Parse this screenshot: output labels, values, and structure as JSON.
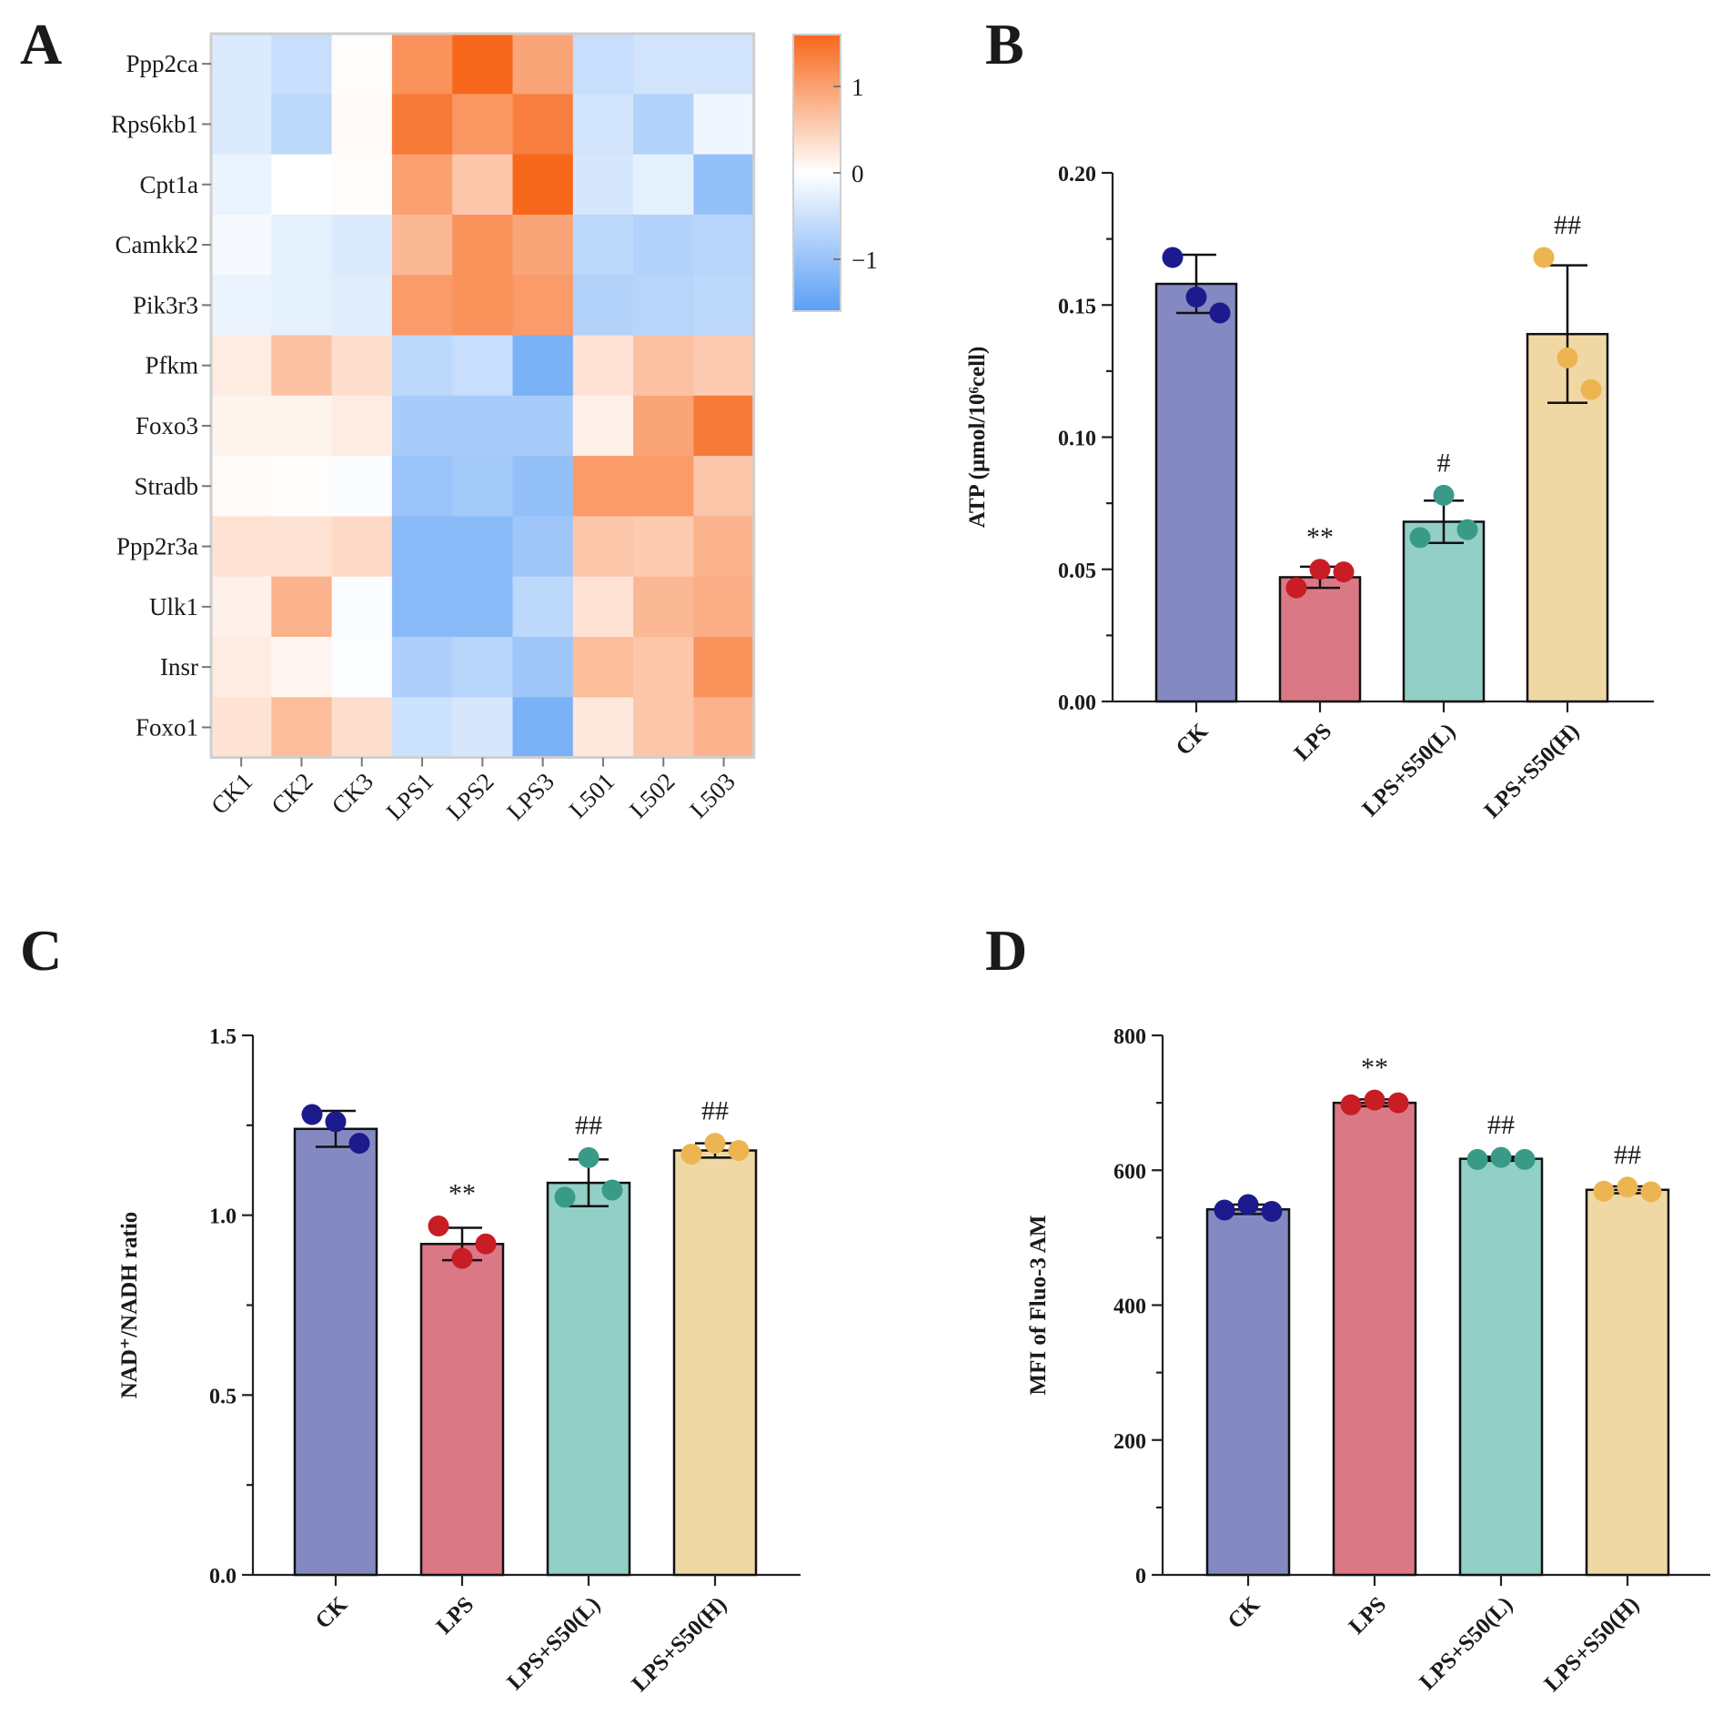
{
  "panels": {
    "A": {
      "letter": "A"
    },
    "B": {
      "letter": "B"
    },
    "C": {
      "letter": "C"
    },
    "D": {
      "letter": "D"
    }
  },
  "chart_data": [
    {
      "panel": "A",
      "type": "heatmap",
      "rows": [
        "Ppp2ca",
        "Rps6kb1",
        "Cpt1a",
        "Camkk2",
        "Pik3r3",
        "Pfkm",
        "Foxo3",
        "Stradb",
        "Ppp2r3a",
        "Ulk1",
        "Insr",
        "Foxo1"
      ],
      "columns": [
        "CK1",
        "CK2",
        "CK3",
        "LPS1",
        "LPS2",
        "LPS3",
        "L501",
        "L502",
        "L503"
      ],
      "values": [
        [
          -0.35,
          -0.55,
          0.02,
          1.15,
          1.6,
          0.95,
          -0.55,
          -0.45,
          -0.45
        ],
        [
          -0.35,
          -0.65,
          0.05,
          1.4,
          1.1,
          1.35,
          -0.45,
          -0.75,
          -0.15
        ],
        [
          -0.2,
          0.0,
          0.02,
          1.0,
          0.6,
          1.6,
          -0.4,
          -0.25,
          -1.05
        ],
        [
          -0.1,
          -0.25,
          -0.35,
          0.75,
          1.15,
          0.95,
          -0.65,
          -0.75,
          -0.7
        ],
        [
          -0.2,
          -0.25,
          -0.3,
          1.05,
          1.15,
          1.05,
          -0.75,
          -0.7,
          -0.65
        ],
        [
          0.2,
          0.65,
          0.35,
          -0.65,
          -0.55,
          -1.3,
          0.3,
          0.65,
          0.55
        ],
        [
          0.12,
          0.12,
          0.2,
          -0.85,
          -0.85,
          -0.85,
          0.15,
          0.95,
          1.4
        ],
        [
          0.04,
          0.02,
          -0.05,
          -1.0,
          -0.9,
          -1.05,
          1.05,
          1.05,
          0.6
        ],
        [
          0.3,
          0.3,
          0.4,
          -1.15,
          -1.15,
          -0.95,
          0.6,
          0.55,
          0.8
        ],
        [
          0.15,
          0.8,
          -0.05,
          -1.15,
          -1.15,
          -0.65,
          0.3,
          0.75,
          0.85
        ],
        [
          0.2,
          0.1,
          -0.04,
          -0.8,
          -0.7,
          -0.95,
          0.7,
          0.6,
          1.15
        ],
        [
          0.3,
          0.7,
          0.35,
          -0.5,
          -0.4,
          -1.3,
          0.25,
          0.6,
          0.8
        ]
      ],
      "colorbar": {
        "range": [
          -1.6,
          1.6
        ],
        "ticks": [
          1,
          0,
          -1
        ],
        "tick_labels": [
          "1",
          "0",
          "−1"
        ]
      },
      "colors": {
        "low": "#5b9ff5",
        "mid": "#ffffff",
        "high": "#f7671b"
      }
    },
    {
      "panel": "B",
      "type": "bar",
      "categories": [
        "CK",
        "LPS",
        "LPS+S50(L)",
        "LPS+S50(H)"
      ],
      "values": [
        0.158,
        0.047,
        0.068,
        0.139
      ],
      "errors": [
        0.011,
        0.004,
        0.008,
        0.026
      ],
      "points": [
        [
          0.168,
          0.153,
          0.147
        ],
        [
          0.043,
          0.05,
          0.049
        ],
        [
          0.062,
          0.078,
          0.065
        ],
        [
          0.168,
          0.13,
          0.118
        ]
      ],
      "significance": [
        "",
        "**",
        "#",
        "##"
      ],
      "ylabel": "ATP (μmol/10⁶cell)",
      "ylim": [
        0,
        0.2
      ],
      "yticks": [
        0,
        0.05,
        0.1,
        0.15,
        0.2
      ],
      "ytick_labels": [
        "0.00",
        "0.05",
        "0.10",
        "0.15",
        "0.20"
      ],
      "colors": [
        "#8589c2",
        "#db7886",
        "#92cfc6",
        "#f0d8a4"
      ],
      "point_colors": [
        "#1c1a8c",
        "#c81d25",
        "#3a9a88",
        "#edb551"
      ]
    },
    {
      "panel": "C",
      "type": "bar",
      "categories": [
        "CK",
        "LPS",
        "LPS+S50(L)",
        "LPS+S50(H)"
      ],
      "values": [
        1.24,
        0.92,
        1.09,
        1.18
      ],
      "errors": [
        0.05,
        0.045,
        0.065,
        0.02
      ],
      "points": [
        [
          1.28,
          1.26,
          1.2
        ],
        [
          0.97,
          0.88,
          0.92
        ],
        [
          1.05,
          1.16,
          1.07
        ],
        [
          1.17,
          1.2,
          1.18
        ]
      ],
      "significance": [
        "",
        "**",
        "##",
        "##"
      ],
      "ylabel": "NAD⁺/NADH ratio",
      "ylim": [
        0,
        1.5
      ],
      "yticks": [
        0,
        0.5,
        1.0,
        1.5
      ],
      "ytick_labels": [
        "0.0",
        "0.5",
        "1.0",
        "1.5"
      ],
      "colors": [
        "#8589c2",
        "#db7886",
        "#92cfc6",
        "#f0d8a4"
      ],
      "point_colors": [
        "#1c1a8c",
        "#c81d25",
        "#3a9a88",
        "#edb551"
      ]
    },
    {
      "panel": "D",
      "type": "bar",
      "categories": [
        "CK",
        "LPS",
        "LPS+S50(L)",
        "LPS+S50(H)"
      ],
      "values": [
        542,
        700,
        617,
        571
      ],
      "errors": [
        7,
        5,
        3,
        5
      ],
      "points": [
        [
          541,
          549,
          539
        ],
        [
          697,
          704,
          700
        ],
        [
          616,
          619,
          616
        ],
        [
          569,
          575,
          568
        ]
      ],
      "significance": [
        "",
        "**",
        "##",
        "##"
      ],
      "ylabel": "MFI of Fluo-3 AM",
      "ylim": [
        0,
        800
      ],
      "yticks": [
        0,
        200,
        400,
        600,
        800
      ],
      "ytick_labels": [
        "0",
        "200",
        "400",
        "600",
        "800"
      ],
      "colors": [
        "#8589c2",
        "#db7886",
        "#92cfc6",
        "#f0d8a4"
      ],
      "point_colors": [
        "#1c1a8c",
        "#c81d25",
        "#3a9a88",
        "#edb551"
      ]
    }
  ]
}
